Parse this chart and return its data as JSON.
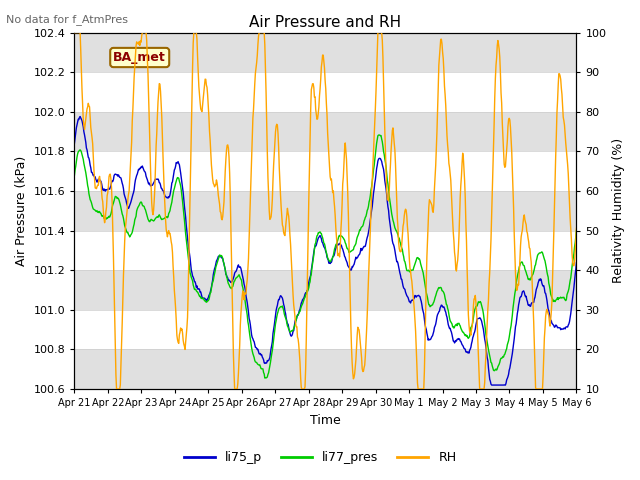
{
  "title": "Air Pressure and RH",
  "top_left_text": "No data for f_AtmPres",
  "box_label": "BA_met",
  "xlabel": "Time",
  "ylabel_left": "Air Pressure (kPa)",
  "ylabel_right": "Relativity Humidity (%)",
  "ylim_left": [
    100.6,
    102.4
  ],
  "ylim_right": [
    10,
    100
  ],
  "yticks_left": [
    100.6,
    100.8,
    101.0,
    101.2,
    101.4,
    101.6,
    101.8,
    102.0,
    102.2,
    102.4
  ],
  "yticks_right": [
    10,
    20,
    30,
    40,
    50,
    60,
    70,
    80,
    90,
    100
  ],
  "color_li75": "#0000cc",
  "color_li77": "#00cc00",
  "color_rh": "#ffa500",
  "color_grid_band": "#e0e0e0",
  "legend_labels": [
    "li75_p",
    "li77_pres",
    "RH"
  ],
  "xtick_labels": [
    "Apr 21",
    "Apr 22",
    "Apr 23",
    "Apr 24",
    "Apr 25",
    "Apr 26",
    "Apr 27",
    "Apr 28",
    "Apr 29",
    "Apr 30",
    "May 1",
    "May 2",
    "May 3",
    "May 4",
    "May 5",
    "May 6"
  ],
  "n_points": 800,
  "figsize": [
    6.4,
    4.8
  ],
  "dpi": 100
}
